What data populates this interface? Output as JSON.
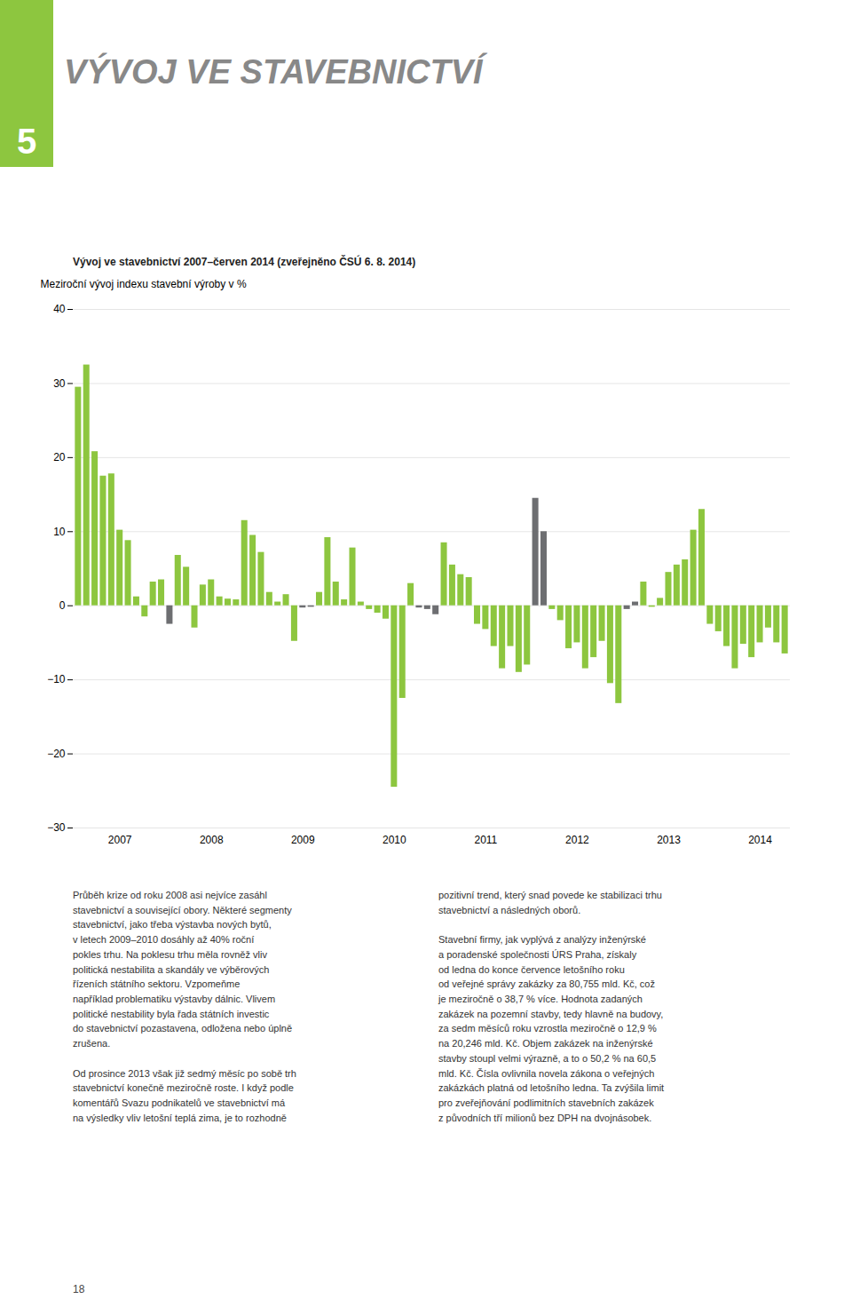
{
  "chart_data": {
    "type": "bar",
    "title": "VÝVOJ VE STAVEBNICTVÍ",
    "subtitle": "Vývoj ve stavebnictví 2007–červen 2014 (zveřejněno ČSÚ 6. 8. 2014)",
    "ylabel": "Meziroční vývoj indexu stavební výroby v %",
    "annotations": [
      "5",
      "Průběh krize od roku 2008 asi nejvíce zasáhl\nstavebnictví a související obory. Některé segmenty\nstavebnictví, jako třeba výstavba nových bytů,\nv letech 2009–2010 dosáhly až 40% roční\npokles trhu. Na poklesu trhu měla rovněž vliv\npolitická nestabilita a skandály ve výběrových\nřízeních státního sektoru. Vzpomeňme\nnapříklad problematiku výstavby dálnic. Vlivem\npolitické nestability byla řada státních investic\ndo stavebnictví pozastavena, odložena nebo úplně\nzrušena.\n\nOd prosince 2013 však již sedmý měsíc po sobě trh\nstavebnictví konečně meziročně roste. I když podle\nkomentářů Svazu podnikatelů ve stavebnictví má\nna výsledky vliv letošní teplá zima, je to rozhodně",
      "pozitivní trend, který snad povede ke stabilizaci trhu\nstavebnictví a následných oborů.\n\nStavební firmy, jak vyplývá z analýzy inženýrské\na poradenské společnosti ÚRS Praha, získaly\nod ledna do konce července letošního roku\nod veřejné správy zakázky za 80,755 mld. Kč, což\nje meziročně o 38,7 % více. Hodnota zadaných\nzakázek na pozemní stavby, tedy hlavně na budovy,\nza sedm měsíců roku vzrostla meziročně o 12,9 %\nna 20,246 mld. Kč. Objem zakázek na inženýrské\nstavby stoupl velmi výrazně, a to o 50,2 % na 60,5\nmld. Kč. Čísla ovlivnila novela zákona o veřejných\nzakázkách platná od letošního ledna. Ta zvýšila limit\npro zveřejňování podlimitních stavebních zakázek\nz původních tří milionů bez DPH na dvojnásobek.",
      "18"
    ],
    "categories": [
      null,
      null,
      null,
      null,
      null,
      "2007",
      null,
      null,
      null,
      null,
      null,
      null,
      null,
      null,
      null,
      null,
      "2008",
      null,
      null,
      null,
      null,
      null,
      null,
      null,
      null,
      null,
      null,
      "2009",
      null,
      null,
      null,
      null,
      null,
      null,
      null,
      null,
      null,
      null,
      "2010",
      null,
      null,
      null,
      null,
      null,
      null,
      null,
      null,
      null,
      null,
      "2011",
      null,
      null,
      null,
      null,
      null,
      null,
      null,
      null,
      null,
      null,
      "2012",
      null,
      null,
      null,
      null,
      null,
      null,
      null,
      null,
      null,
      null,
      "2013",
      null,
      null,
      null,
      null,
      null,
      null,
      null,
      null,
      null,
      null,
      "2014",
      null,
      null,
      null
    ],
    "values": [
      29.5,
      32.5,
      20.8,
      17.5,
      17.8,
      10.2,
      8.8,
      1.2,
      -1.5,
      3.2,
      3.5,
      -2.5,
      6.8,
      5.2,
      -3.0,
      2.8,
      3.5,
      1.2,
      0.9,
      0.8,
      11.5,
      9.5,
      7.2,
      1.8,
      0.5,
      1.5,
      -4.8,
      -0.3,
      -0.2,
      1.8,
      9.2,
      3.2,
      0.8,
      7.8,
      0.5,
      -0.5,
      -1.0,
      -1.8,
      -24.5,
      -12.5,
      3.0,
      -0.3,
      -0.5,
      -1.2,
      8.5,
      5.5,
      4.2,
      3.8,
      -2.5,
      -3.2,
      -5.5,
      -8.5,
      -5.5,
      -9.0,
      -8.0,
      14.5,
      10.0,
      -0.5,
      -2.0,
      -5.8,
      -5.0,
      -8.5,
      -7.0,
      -4.8,
      -10.5,
      -13.2,
      -0.5,
      0.5,
      3.2,
      -0.2,
      1.0,
      4.5,
      5.5,
      6.2,
      10.2,
      13.0,
      -2.5,
      -3.5,
      -5.5,
      -8.5,
      -5.2,
      -7.0,
      -5.0,
      -3.0,
      -5.0,
      -6.5
    ],
    "colors": [
      "#8dc63f",
      "#8dc63f",
      "#8dc63f",
      "#8dc63f",
      "#8dc63f",
      "#8dc63f",
      "#8dc63f",
      "#8dc63f",
      "#8dc63f",
      "#8dc63f",
      "#8dc63f",
      "#6d6e71",
      "#8dc63f",
      "#8dc63f",
      "#8dc63f",
      "#8dc63f",
      "#8dc63f",
      "#8dc63f",
      "#8dc63f",
      "#8dc63f",
      "#8dc63f",
      "#8dc63f",
      "#8dc63f",
      "#8dc63f",
      "#8dc63f",
      "#8dc63f",
      "#8dc63f",
      "#6d6e71",
      "#6d6e71",
      "#8dc63f",
      "#8dc63f",
      "#8dc63f",
      "#8dc63f",
      "#8dc63f",
      "#8dc63f",
      "#8dc63f",
      "#8dc63f",
      "#8dc63f",
      "#8dc63f",
      "#8dc63f",
      "#8dc63f",
      "#6d6e71",
      "#6d6e71",
      "#6d6e71",
      "#8dc63f",
      "#8dc63f",
      "#8dc63f",
      "#8dc63f",
      "#8dc63f",
      "#8dc63f",
      "#8dc63f",
      "#8dc63f",
      "#8dc63f",
      "#8dc63f",
      "#8dc63f",
      "#6d6e71",
      "#6d6e71",
      "#8dc63f",
      "#8dc63f",
      "#8dc63f",
      "#8dc63f",
      "#8dc63f",
      "#8dc63f",
      "#8dc63f",
      "#8dc63f",
      "#8dc63f",
      "#6d6e71",
      "#6d6e71",
      "#8dc63f",
      "#8dc63f",
      "#8dc63f",
      "#8dc63f",
      "#8dc63f",
      "#8dc63f",
      "#8dc63f",
      "#8dc63f",
      "#8dc63f",
      "#8dc63f",
      "#8dc63f",
      "#8dc63f",
      "#8dc63f",
      "#8dc63f",
      "#8dc63f",
      "#8dc63f",
      "#8dc63f",
      "#8dc63f"
    ],
    "ylim": [
      -30,
      40
    ],
    "yticks": [
      -30,
      -20,
      -10,
      0,
      10,
      20,
      30,
      40
    ],
    "grid": true
  }
}
